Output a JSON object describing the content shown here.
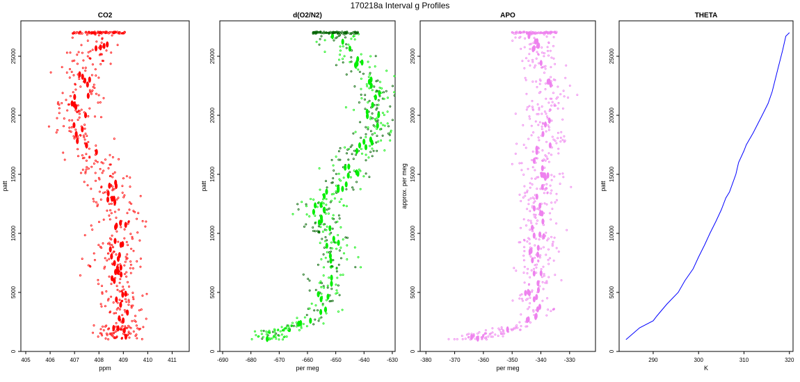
{
  "main_title": "170218a   Interval g Profiles",
  "chart_data": [
    {
      "type": "scatter",
      "title": "CO2",
      "xlabel": "ppm",
      "ylabel": "patt",
      "xlim": [
        404.8,
        411.7
      ],
      "ylim": [
        0,
        28000
      ],
      "xticks": [
        405,
        406,
        407,
        408,
        409,
        410,
        411
      ],
      "yticks": [
        0,
        5000,
        10000,
        15000,
        20000,
        25000
      ],
      "color": "#ff0000",
      "profile": [
        [
          408.0,
          27000
        ],
        [
          408.1,
          26000
        ],
        [
          407.5,
          25000
        ],
        [
          407.1,
          24000
        ],
        [
          407.6,
          23000
        ],
        [
          407.4,
          22000
        ],
        [
          407.2,
          21000
        ],
        [
          407.2,
          20000
        ],
        [
          407.0,
          19000
        ],
        [
          407.3,
          18000
        ],
        [
          407.6,
          17000
        ],
        [
          407.9,
          16000
        ],
        [
          408.2,
          15000
        ],
        [
          408.5,
          14000
        ],
        [
          408.6,
          13000
        ],
        [
          408.9,
          12000
        ],
        [
          408.8,
          11000
        ],
        [
          408.8,
          10000
        ],
        [
          408.7,
          9000
        ],
        [
          408.6,
          8000
        ],
        [
          408.7,
          7000
        ],
        [
          408.7,
          6000
        ],
        [
          409.0,
          5000
        ],
        [
          408.9,
          4000
        ],
        [
          409.0,
          3000
        ],
        [
          408.9,
          2000
        ],
        [
          408.8,
          1000
        ]
      ],
      "spread": 0.55,
      "bottom_y": 1000
    },
    {
      "type": "scatter",
      "title": "d(O2/N2)",
      "xlabel": "per meg",
      "ylabel": "patt",
      "xlim": [
        -691,
        -629
      ],
      "ylim": [
        0,
        28000
      ],
      "xticks": [
        -690,
        -680,
        -670,
        -660,
        -650,
        -640,
        -630
      ],
      "yticks": [
        0,
        5000,
        10000,
        15000,
        20000,
        25000
      ],
      "color": "#00ee00",
      "profile": [
        [
          -650,
          27000
        ],
        [
          -648,
          26000
        ],
        [
          -644,
          25000
        ],
        [
          -641,
          24000
        ],
        [
          -638,
          23000
        ],
        [
          -636,
          22000
        ],
        [
          -636,
          21000
        ],
        [
          -637,
          20000
        ],
        [
          -636,
          19000
        ],
        [
          -637,
          18000
        ],
        [
          -641,
          17000
        ],
        [
          -645,
          16000
        ],
        [
          -644,
          15000
        ],
        [
          -649,
          14000
        ],
        [
          -653,
          13000
        ],
        [
          -656,
          12000
        ],
        [
          -655,
          11000
        ],
        [
          -653,
          10000
        ],
        [
          -651,
          9000
        ],
        [
          -652,
          8000
        ],
        [
          -651,
          7000
        ],
        [
          -653,
          6000
        ],
        [
          -654,
          5000
        ],
        [
          -654,
          4000
        ],
        [
          -656,
          3000
        ],
        [
          -665,
          2000
        ],
        [
          -675,
          1500
        ],
        [
          -672,
          1000
        ]
      ],
      "spread": 4,
      "bottom_y": 1000
    },
    {
      "type": "scatter",
      "title": "APO",
      "xlabel": "per meg",
      "ylabel": "approx. per meg",
      "xlim": [
        -382,
        -321
      ],
      "ylim": [
        0,
        28000
      ],
      "xticks": [
        -380,
        -370,
        -360,
        -350,
        -340,
        -330
      ],
      "yticks": [
        0,
        5000,
        10000,
        15000,
        20000,
        25000
      ],
      "color": "#ee82ee",
      "profile": [
        [
          -342,
          27000
        ],
        [
          -342,
          26000
        ],
        [
          -340,
          25000
        ],
        [
          -339,
          24000
        ],
        [
          -338,
          23000
        ],
        [
          -337,
          22000
        ],
        [
          -338,
          21000
        ],
        [
          -339,
          20000
        ],
        [
          -339,
          19000
        ],
        [
          -338,
          18000
        ],
        [
          -340,
          17000
        ],
        [
          -340,
          16000
        ],
        [
          -339,
          15000
        ],
        [
          -340,
          14000
        ],
        [
          -341,
          13000
        ],
        [
          -341,
          12000
        ],
        [
          -341,
          11000
        ],
        [
          -341,
          10000
        ],
        [
          -341,
          9000
        ],
        [
          -342,
          8000
        ],
        [
          -341,
          7000
        ],
        [
          -342,
          6000
        ],
        [
          -343,
          5000
        ],
        [
          -343,
          4000
        ],
        [
          -342,
          3000
        ],
        [
          -349,
          2000
        ],
        [
          -358,
          1500
        ],
        [
          -365,
          1000
        ]
      ],
      "spread": 4,
      "bottom_y": 1000
    },
    {
      "type": "line",
      "title": "THETA",
      "xlabel": "K",
      "ylabel": "patt",
      "xlim": [
        282.5,
        320.8
      ],
      "ylim": [
        0,
        28000
      ],
      "xticks": [
        290,
        300,
        310,
        320
      ],
      "yticks": [
        0,
        5000,
        10000,
        15000,
        20000,
        25000
      ],
      "color": "#0000ff",
      "x": [
        284.0,
        285.5,
        287.0,
        290.0,
        290.8,
        293.0,
        295.5,
        297.0,
        298.8,
        300.0,
        301.3,
        302.5,
        303.8,
        305.0,
        306.0,
        306.8,
        308.2,
        308.8,
        310.0,
        310.5,
        312.0,
        314.0,
        315.3,
        316.2,
        317.5,
        318.5,
        319.2,
        320.0
      ],
      "y": [
        1000,
        1500,
        2000,
        2600,
        3000,
        4000,
        5000,
        6000,
        7000,
        8000,
        9000,
        10000,
        11000,
        12000,
        13000,
        13500,
        15000,
        16000,
        17000,
        17500,
        18500,
        20000,
        21000,
        22000,
        24000,
        25500,
        26700,
        27000
      ]
    }
  ]
}
